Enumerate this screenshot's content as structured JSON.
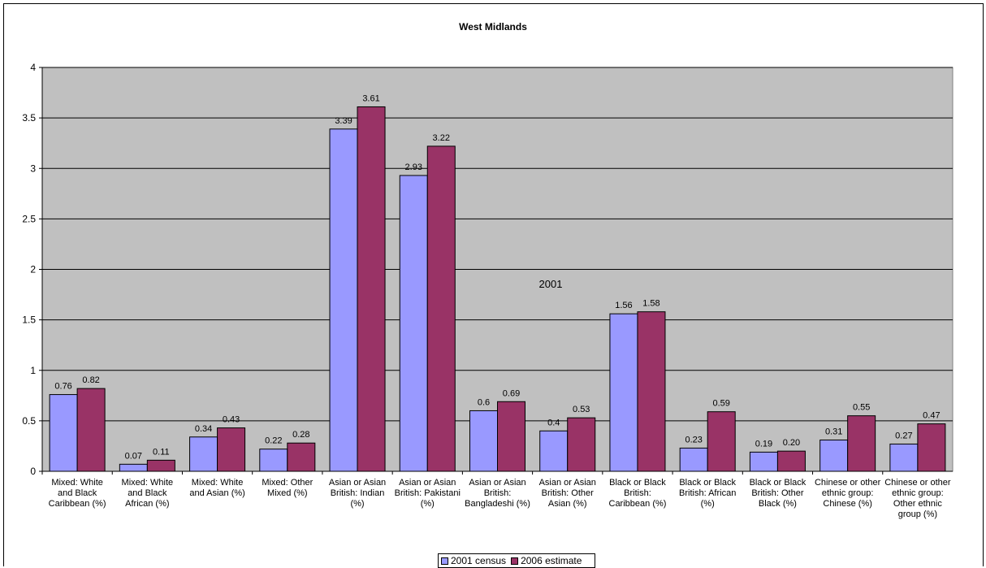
{
  "chart_data": {
    "type": "bar",
    "title": "West Midlands",
    "annotation": "2001",
    "xlabel": "",
    "ylabel": "",
    "ylim": [
      0,
      4
    ],
    "yticks": [
      "0",
      "0.5",
      "1",
      "1.5",
      "2",
      "2.5",
      "3",
      "3.5",
      "4"
    ],
    "grid": true,
    "legend_position": "bottom",
    "plot_background": "#c0c0c0",
    "categories": [
      [
        "Mixed: White",
        "and Black",
        "Caribbean (%)"
      ],
      [
        "Mixed: White",
        "and Black",
        "African (%)"
      ],
      [
        "Mixed: White",
        "and Asian (%)"
      ],
      [
        "Mixed: Other",
        "Mixed (%)"
      ],
      [
        "Asian or Asian",
        "British: Indian",
        "(%)"
      ],
      [
        "Asian or Asian",
        "British: Pakistani",
        "(%)"
      ],
      [
        "Asian or Asian",
        "British:",
        "Bangladeshi (%)"
      ],
      [
        "Asian or Asian",
        "British: Other",
        "Asian (%)"
      ],
      [
        "Black or Black",
        "British:",
        "Caribbean (%)"
      ],
      [
        "Black or Black",
        "British: African",
        "(%)"
      ],
      [
        "Black or Black",
        "British: Other",
        "Black (%)"
      ],
      [
        "Chinese or other",
        "ethnic group:",
        "Chinese (%)"
      ],
      [
        "Chinese or other",
        "ethnic group:",
        "Other ethnic",
        "group (%)"
      ]
    ],
    "series": [
      {
        "name": "2001 census",
        "color": "#9999ff",
        "values": [
          0.76,
          0.07,
          0.34,
          0.22,
          3.39,
          2.93,
          0.6,
          0.4,
          1.56,
          0.23,
          0.19,
          0.31,
          0.27
        ],
        "labels": [
          "0.76",
          "0.07",
          "0.34",
          "0.22",
          "3.39",
          "2.93",
          "0.6",
          "0.4",
          "1.56",
          "0.23",
          "0.19",
          "0.31",
          "0.27"
        ]
      },
      {
        "name": "2006 estimate",
        "color": "#993366",
        "values": [
          0.82,
          0.11,
          0.43,
          0.28,
          3.61,
          3.22,
          0.69,
          0.53,
          1.58,
          0.59,
          0.2,
          0.55,
          0.47
        ],
        "labels": [
          "0.82",
          "0.11",
          "0.43",
          "0.28",
          "3.61",
          "3.22",
          "0.69",
          "0.53",
          "1.58",
          "0.59",
          "0.20",
          "0.55",
          "0.47"
        ]
      }
    ]
  }
}
